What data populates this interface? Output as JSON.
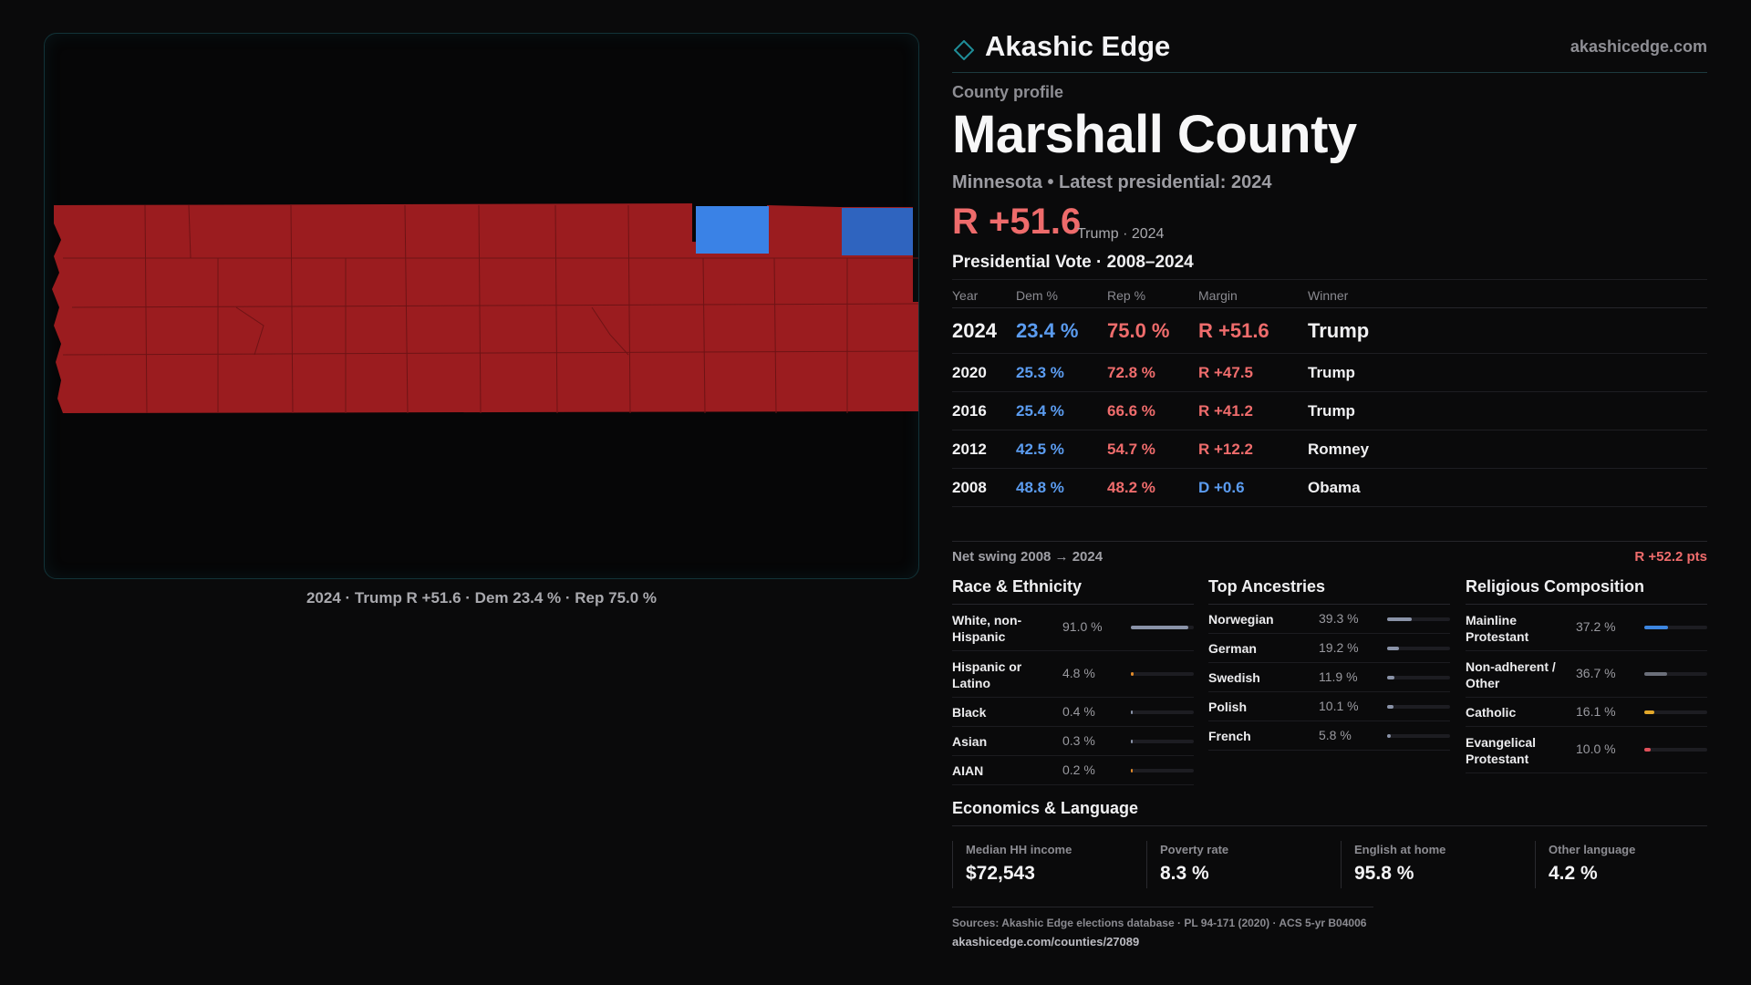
{
  "brand": {
    "name": "Akashic Edge",
    "url": "akashicedge.com",
    "icon": "diamond-icon"
  },
  "profile": {
    "eyebrow": "County profile",
    "title": "Marshall County",
    "subline": "Minnesota • Latest presidential: 2024",
    "margin": "R +51.6",
    "margin_sub": "Trump · 2024"
  },
  "map": {
    "caption": "2024 · Trump R +51.6 · Dem 23.4 % · Rep 75.0 %",
    "colors": {
      "rep": "#9b1c1f",
      "dem_light": "#3a82e6",
      "dem": "#2f64bf",
      "boundary": "#6e1315"
    }
  },
  "vote": {
    "title": "Presidential Vote · 2008–2024",
    "headers": {
      "year": "Year",
      "dem": "Dem %",
      "rep": "Rep %",
      "margin": "Margin",
      "winner": "Winner"
    },
    "rows": [
      {
        "year": "2024",
        "dem": "23.4 %",
        "rep": "75.0 %",
        "margin": "R +51.6",
        "winner": "Trump",
        "party": "R"
      },
      {
        "year": "2020",
        "dem": "25.3 %",
        "rep": "72.8 %",
        "margin": "R +47.5",
        "winner": "Trump",
        "party": "R"
      },
      {
        "year": "2016",
        "dem": "25.4 %",
        "rep": "66.6 %",
        "margin": "R +41.2",
        "winner": "Trump",
        "party": "R"
      },
      {
        "year": "2012",
        "dem": "42.5 %",
        "rep": "54.7 %",
        "margin": "R +12.2",
        "winner": "Romney",
        "party": "R"
      },
      {
        "year": "2008",
        "dem": "48.8 %",
        "rep": "48.2 %",
        "margin": "D +0.6",
        "winner": "Obama",
        "party": "D"
      }
    ],
    "swing_label": "Net swing 2008 → 2024",
    "swing_value": "R +52.2 pts"
  },
  "race": {
    "title": "Race & Ethnicity",
    "items": [
      {
        "label": "White, non-Hispanic",
        "value": "91.0 %",
        "fraction": 0.91,
        "color": "#8a93a8"
      },
      {
        "label": "Hispanic or Latino",
        "value": "4.8 %",
        "fraction": 0.048,
        "color": "#e08a2a"
      },
      {
        "label": "Black",
        "value": "0.4 %",
        "fraction": 0.004,
        "color": "#8a93a8"
      },
      {
        "label": "Asian",
        "value": "0.3 %",
        "fraction": 0.003,
        "color": "#8a93a8"
      },
      {
        "label": "AIAN",
        "value": "0.2 %",
        "fraction": 0.002,
        "color": "#e08a2a"
      }
    ]
  },
  "ancestry": {
    "title": "Top Ancestries",
    "items": [
      {
        "label": "Norwegian",
        "value": "39.3 %",
        "fraction": 0.393,
        "color": "#8a93a8"
      },
      {
        "label": "German",
        "value": "19.2 %",
        "fraction": 0.192,
        "color": "#8a93a8"
      },
      {
        "label": "Swedish",
        "value": "11.9 %",
        "fraction": 0.119,
        "color": "#8a93a8"
      },
      {
        "label": "Polish",
        "value": "10.1 %",
        "fraction": 0.101,
        "color": "#8a93a8"
      },
      {
        "label": "French",
        "value": "5.8 %",
        "fraction": 0.058,
        "color": "#8a93a8"
      }
    ]
  },
  "religion": {
    "title": "Religious Composition",
    "items": [
      {
        "label": "Mainline Protestant",
        "value": "37.2 %",
        "fraction": 0.372,
        "color": "#3d86e0"
      },
      {
        "label": "Non-adherent / Other",
        "value": "36.7 %",
        "fraction": 0.367,
        "color": "#6b6f7a"
      },
      {
        "label": "Catholic",
        "value": "16.1 %",
        "fraction": 0.161,
        "color": "#e3a82a"
      },
      {
        "label": "Evangelical Protestant",
        "value": "10.0 %",
        "fraction": 0.1,
        "color": "#e0505a"
      }
    ]
  },
  "economics": {
    "title": "Economics & Language",
    "items": [
      {
        "label": "Median HH income",
        "value": "$72,543"
      },
      {
        "label": "Poverty rate",
        "value": "8.3 %"
      },
      {
        "label": "English at home",
        "value": "95.8 %"
      },
      {
        "label": "Other language",
        "value": "4.2 %"
      }
    ]
  },
  "sources": {
    "line": "Sources: Akashic Edge elections database · PL 94-171 (2020) · ACS 5-yr B04006",
    "url": "akashicedge.com/counties/27089"
  }
}
